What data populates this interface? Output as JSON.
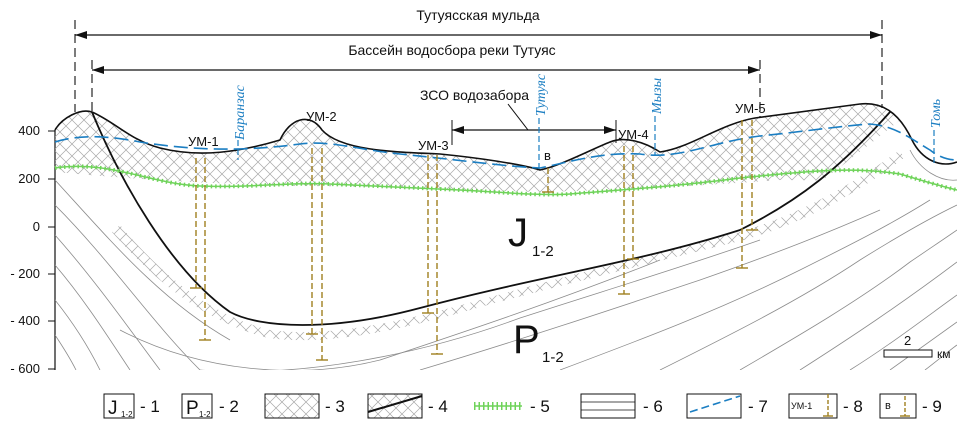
{
  "titles": {
    "syncline": "Тутуясская мульда",
    "basin": "Бассейн водосбора реки Тутуяс",
    "zso": "ЗСО водозабора"
  },
  "y_axis": {
    "ticks": [
      "400",
      "200",
      "0",
      "- 200",
      "- 400",
      "- 600"
    ]
  },
  "rivers": {
    "baranzas": "Баранзас",
    "tutuyas": "Тутуяс",
    "myzy": "Мызы",
    "tom": "Томь"
  },
  "wells": {
    "um1": "УМ-1",
    "um2": "УМ-2",
    "um3": "УМ-3",
    "um4": "УМ-4",
    "um5": "УМ-5",
    "v": "в"
  },
  "units": {
    "j_main": "J",
    "j_sub": "1-2",
    "p_main": "P",
    "p_sub": "1-2"
  },
  "scale": {
    "value": "2",
    "unit": "км"
  },
  "legend": {
    "box_j_main": "J",
    "box_j_sub": "1-2",
    "box_p_main": "P",
    "box_p_sub": "1-2",
    "box_um": "УМ-1",
    "box_v": "в",
    "n1": "- 1",
    "n2": "- 2",
    "n3": "- 3",
    "n4": "- 4",
    "n5": "- 5",
    "n6": "- 6",
    "n7": "- 7",
    "n8": "- 8",
    "n9": "- 9"
  },
  "colors": {
    "water_table": "#1b7ec2",
    "aquitard": "#6fd35a",
    "well": "#a07f20",
    "hatch": "#9a9a9a"
  }
}
